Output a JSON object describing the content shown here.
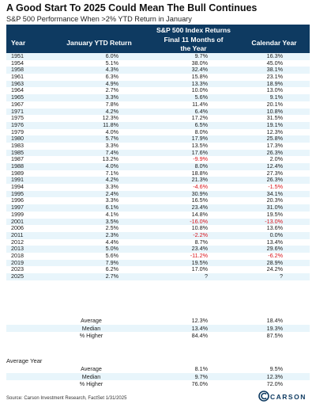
{
  "title": "A Good Start To 2025 Could Mean The Bull Continues",
  "subtitle": "S&P 500 Performance When >2% YTD Return in January",
  "headers": {
    "year": "Year",
    "jan": "January YTD Return",
    "sp": "S&P 500 Index Returns",
    "final_a": "Final 11 Months of",
    "final_b": "the Year",
    "cal": "Calendar Year"
  },
  "chart_data": {
    "type": "table",
    "columns": [
      "Year",
      "January YTD Return",
      "Final 11 Months of the Year",
      "Calendar Year"
    ],
    "rows": [
      [
        "1951",
        "6.0%",
        "9.7%",
        "16.3%"
      ],
      [
        "1954",
        "5.1%",
        "38.0%",
        "45.0%"
      ],
      [
        "1958",
        "4.3%",
        "32.4%",
        "38.1%"
      ],
      [
        "1961",
        "6.3%",
        "15.8%",
        "23.1%"
      ],
      [
        "1963",
        "4.9%",
        "13.3%",
        "18.9%"
      ],
      [
        "1964",
        "2.7%",
        "10.0%",
        "13.0%"
      ],
      [
        "1965",
        "3.3%",
        "5.6%",
        "9.1%"
      ],
      [
        "1967",
        "7.8%",
        "11.4%",
        "20.1%"
      ],
      [
        "1971",
        "4.2%",
        "6.4%",
        "10.8%"
      ],
      [
        "1975",
        "12.3%",
        "17.2%",
        "31.5%"
      ],
      [
        "1976",
        "11.8%",
        "6.5%",
        "19.1%"
      ],
      [
        "1979",
        "4.0%",
        "8.0%",
        "12.3%"
      ],
      [
        "1980",
        "5.7%",
        "17.9%",
        "25.8%"
      ],
      [
        "1983",
        "3.3%",
        "13.5%",
        "17.3%"
      ],
      [
        "1985",
        "7.4%",
        "17.6%",
        "26.3%"
      ],
      [
        "1987",
        "13.2%",
        "-9.9%",
        "2.0%"
      ],
      [
        "1988",
        "4.0%",
        "8.0%",
        "12.4%"
      ],
      [
        "1989",
        "7.1%",
        "18.8%",
        "27.3%"
      ],
      [
        "1991",
        "4.2%",
        "21.3%",
        "26.3%"
      ],
      [
        "1994",
        "3.3%",
        "-4.6%",
        "-1.5%"
      ],
      [
        "1995",
        "2.4%",
        "30.9%",
        "34.1%"
      ],
      [
        "1996",
        "3.3%",
        "16.5%",
        "20.3%"
      ],
      [
        "1997",
        "6.1%",
        "23.4%",
        "31.0%"
      ],
      [
        "1999",
        "4.1%",
        "14.8%",
        "19.5%"
      ],
      [
        "2001",
        "3.5%",
        "-16.0%",
        "-13.0%"
      ],
      [
        "2006",
        "2.5%",
        "10.8%",
        "13.6%"
      ],
      [
        "2011",
        "2.3%",
        "-2.2%",
        "0.0%"
      ],
      [
        "2012",
        "4.4%",
        "8.7%",
        "13.4%"
      ],
      [
        "2013",
        "5.0%",
        "23.4%",
        "29.6%"
      ],
      [
        "2018",
        "5.6%",
        "-11.2%",
        "-6.2%"
      ],
      [
        "2019",
        "7.9%",
        "19.5%",
        "28.9%"
      ],
      [
        "2023",
        "6.2%",
        "17.0%",
        "24.2%"
      ],
      [
        "2025",
        "2.7%",
        "?",
        "?"
      ]
    ],
    "summary": [
      [
        "Average",
        "12.3%",
        "18.4%"
      ],
      [
        "Median",
        "13.4%",
        "19.3%"
      ],
      [
        "% Higher",
        "84.4%",
        "87.5%"
      ]
    ],
    "average_year_title": "Average Year",
    "average_year": [
      [
        "Average",
        "8.1%",
        "9.5%"
      ],
      [
        "Median",
        "9.7%",
        "12.3%"
      ],
      [
        "% Higher",
        "76.0%",
        "72.0%"
      ]
    ]
  },
  "source": "Source: Carson Investment Research, FactSet 1/31/2025",
  "logo": {
    "text": "CARSON",
    "icon": "carson-logo-icon"
  },
  "colors": {
    "header": "#0e3a61",
    "stripe": "#e8f5fb",
    "negative": "#d9141b"
  }
}
